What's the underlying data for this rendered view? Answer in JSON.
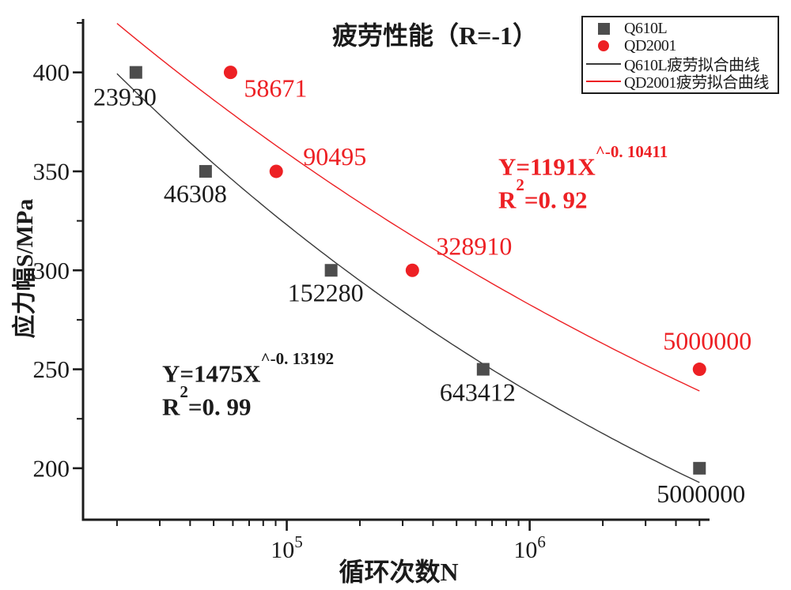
{
  "chart_data": {
    "type": "scatter",
    "title": "疲劳性能（R=-1）",
    "xlabel": "循环次数N",
    "ylabel": "应力幅S/MPa",
    "x_scale": "log",
    "grid": false,
    "xlim": [
      14500,
      5500000
    ],
    "ylim": [
      174,
      427
    ],
    "x_major_ticks": [
      {
        "value": 100000,
        "label_base": "10",
        "label_exp": "5"
      },
      {
        "value": 1000000,
        "label_base": "10",
        "label_exp": "6"
      }
    ],
    "x_minor_ticks": [
      20000,
      30000,
      40000,
      50000,
      60000,
      70000,
      80000,
      90000,
      200000,
      300000,
      400000,
      500000,
      600000,
      700000,
      800000,
      900000,
      2000000,
      3000000,
      4000000,
      5000000
    ],
    "y_major_ticks": [
      200,
      250,
      300,
      350,
      400
    ],
    "y_minor_ticks": [
      225,
      275,
      325,
      375,
      425
    ],
    "series": [
      {
        "name": "Q610L",
        "marker": "square",
        "color": "#4d4d4d",
        "label_color": "#1b1b1b",
        "points": [
          {
            "x": 23930,
            "y": 400,
            "label": "23930",
            "dx": -14,
            "dy": 31
          },
          {
            "x": 46308,
            "y": 350,
            "label": "46308",
            "dx": -13,
            "dy": 28
          },
          {
            "x": 152280,
            "y": 300,
            "label": "152280",
            "dx": -7,
            "dy": 28
          },
          {
            "x": 643412,
            "y": 250,
            "label": "643412",
            "dx": -7,
            "dy": 29
          },
          {
            "x": 5000000,
            "y": 200,
            "label": "5000000",
            "dx": 2,
            "dy": 32
          }
        ]
      },
      {
        "name": "QD2001",
        "marker": "circle",
        "color": "#ed2024",
        "label_color": "#ed2024",
        "points": [
          {
            "x": 58671,
            "y": 400,
            "label": "58671",
            "dx": 57,
            "dy": 20
          },
          {
            "x": 90495,
            "y": 350,
            "label": "90495",
            "dx": 74,
            "dy": -19
          },
          {
            "x": 328910,
            "y": 300,
            "label": "328910",
            "dx": 78,
            "dy": -31
          },
          {
            "x": 5000000,
            "y": 250,
            "label": "5000000",
            "dx": 10,
            "dy": -36
          }
        ]
      }
    ],
    "fit_curves": [
      {
        "name": "Q610L疲劳拟合曲线",
        "color": "#3a3a3a",
        "coef": 1475,
        "exponent": -0.13192,
        "domain": [
          20000,
          5000000
        ]
      },
      {
        "name": "QD2001疲劳拟合曲线",
        "color": "#ed2024",
        "coef": 1191,
        "exponent": -0.10411,
        "domain": [
          20000,
          5000000
        ]
      }
    ],
    "annotations": {
      "black": {
        "base": "Y=1475X",
        "exp": "^-0. 13192",
        "r2_base": "R",
        "r2_sup": "2",
        "r2_rest": "=0. 99"
      },
      "red": {
        "base": "Y=1191X",
        "exp": "^-0. 10411",
        "r2_base": "R",
        "r2_sup": "2",
        "r2_rest": "=0. 92"
      }
    }
  },
  "legend": {
    "items": [
      {
        "type": "square",
        "color": "#4d4d4d",
        "label": "Q610L"
      },
      {
        "type": "circle",
        "color": "#ed2024",
        "label": "QD2001"
      },
      {
        "type": "line",
        "color": "#3a3a3a",
        "label": "Q610L疲劳拟合曲线"
      },
      {
        "type": "line",
        "color": "#ed2024",
        "label": "QD2001疲劳拟合曲线"
      }
    ]
  }
}
